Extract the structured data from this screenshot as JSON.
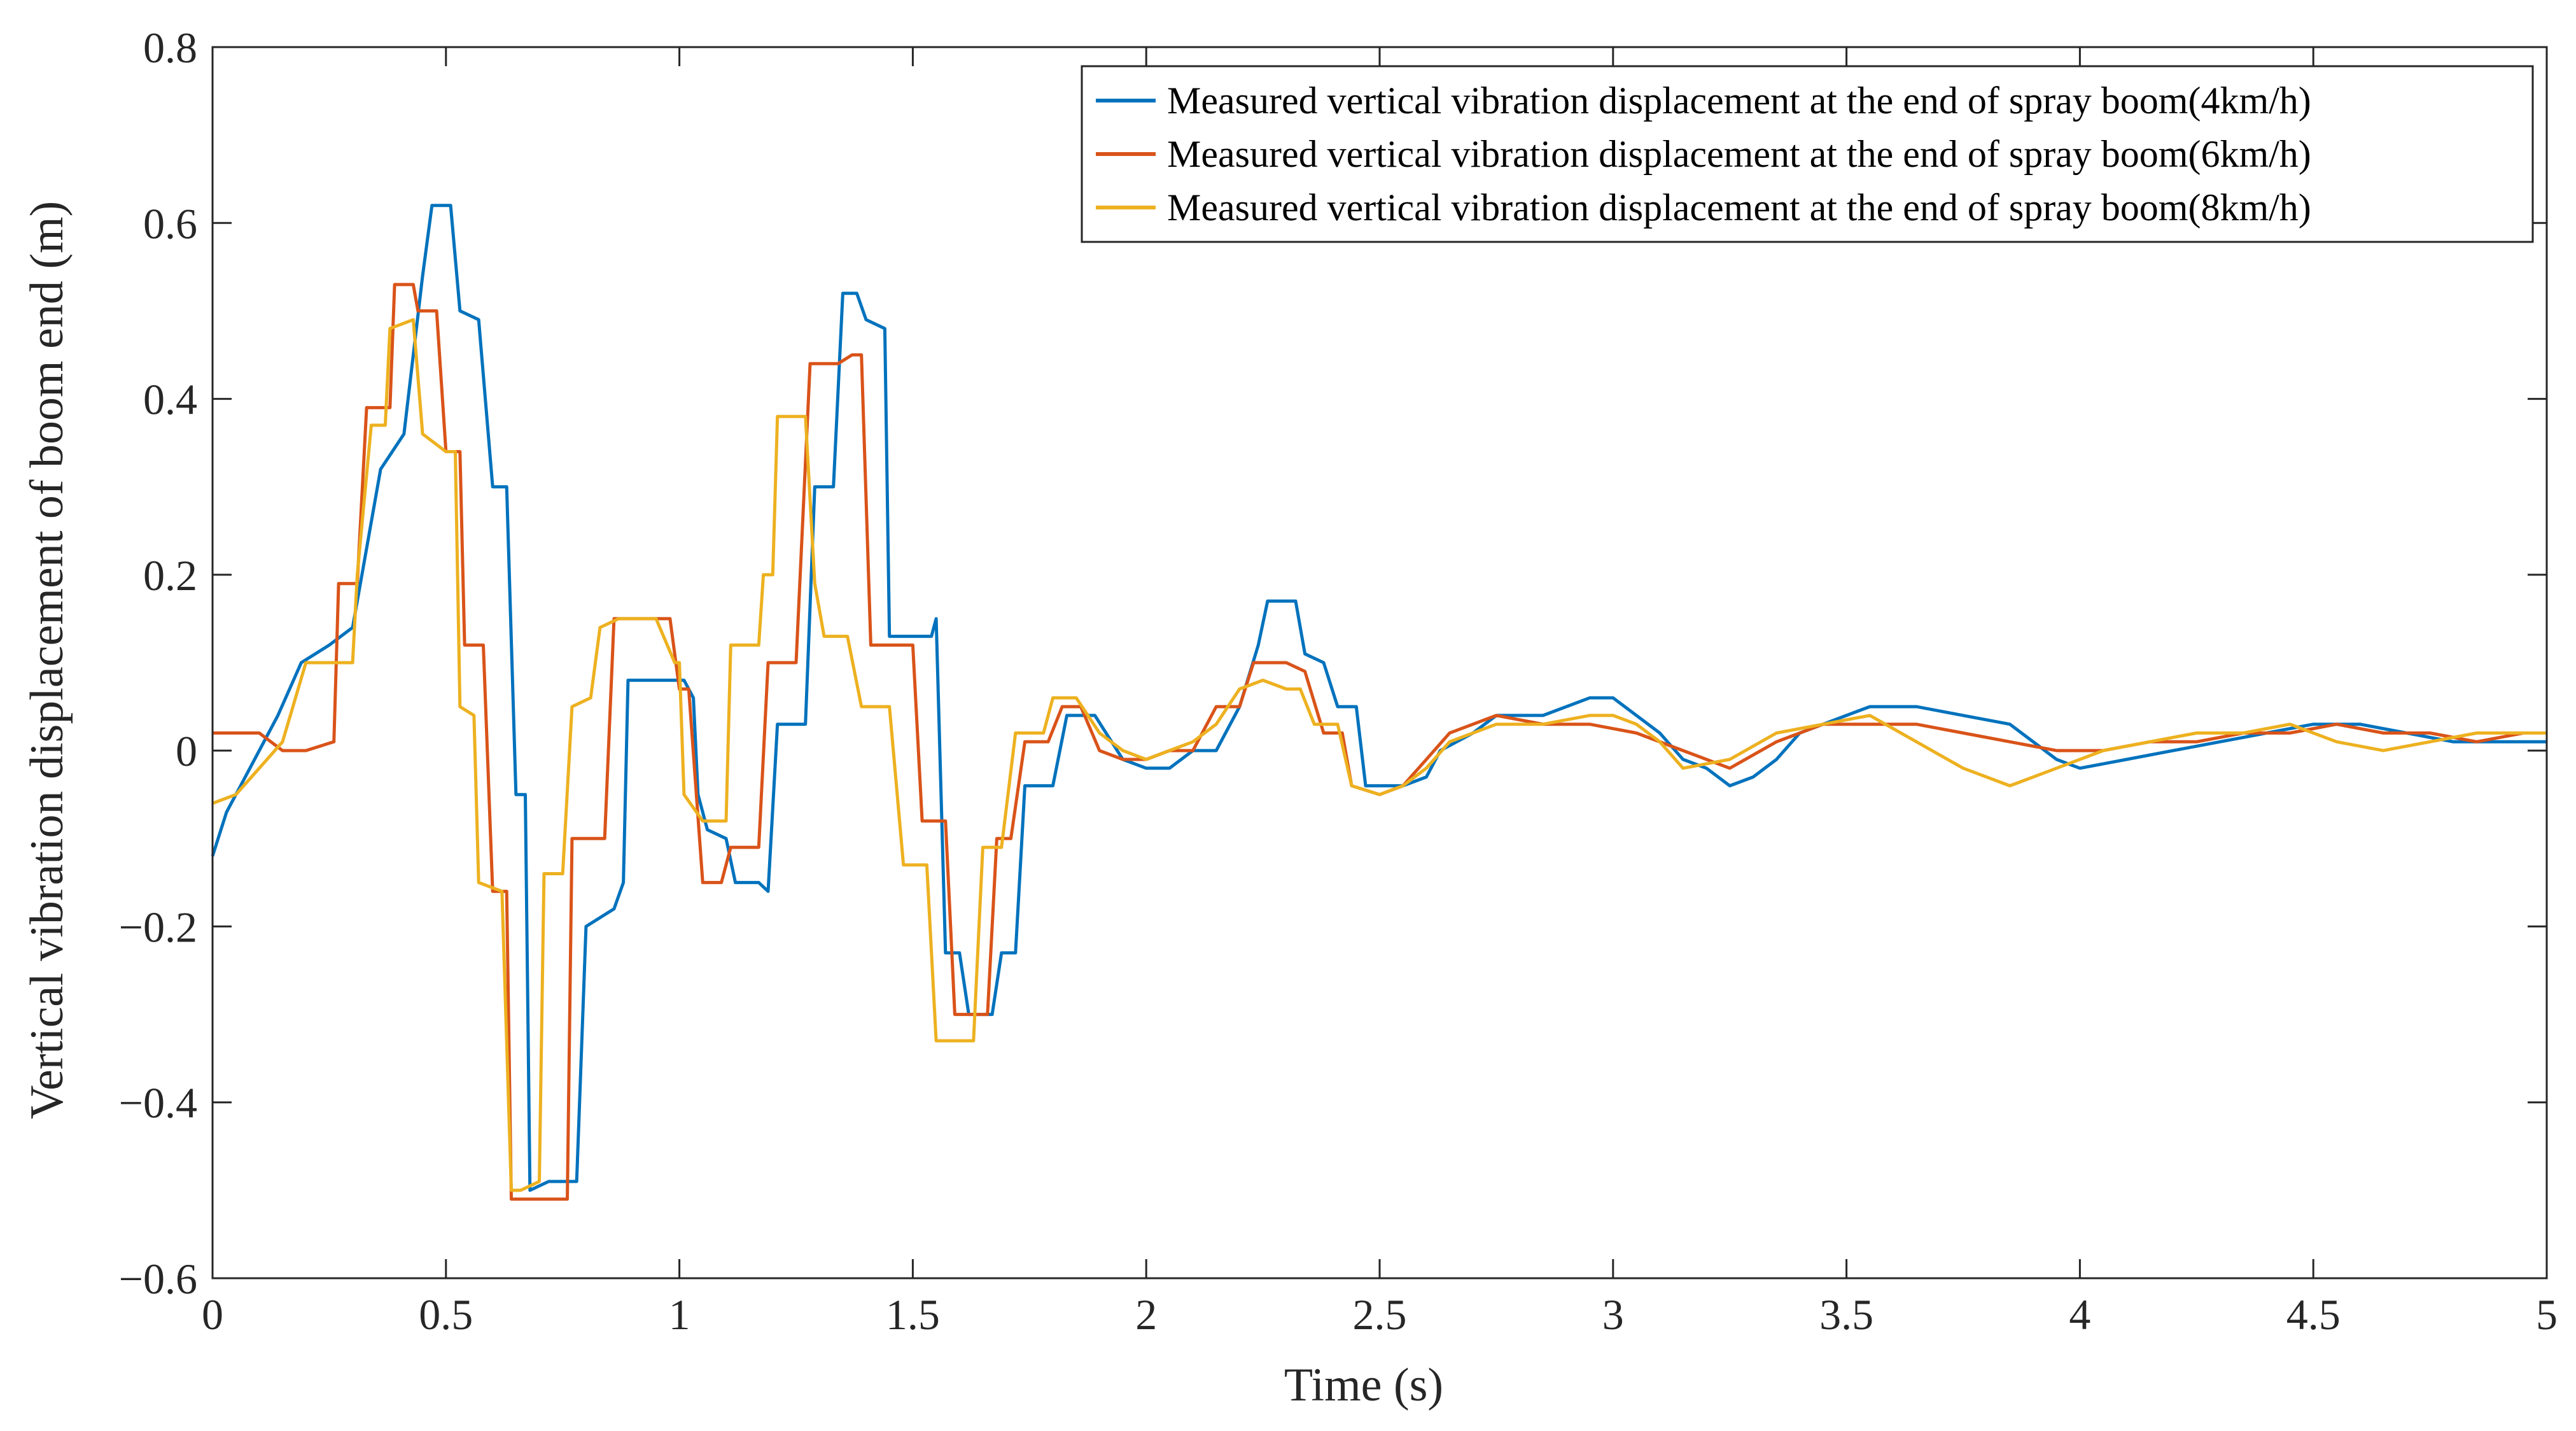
{
  "chart_data": {
    "type": "line",
    "title": "",
    "xlabel": "Time  (s)",
    "ylabel": "Vertical vibration displacement of boom end  (m)",
    "xlim": [
      0,
      5
    ],
    "ylim": [
      -0.6,
      0.8
    ],
    "xticks": [
      0,
      0.5,
      1,
      1.5,
      2,
      2.5,
      3,
      3.5,
      4,
      4.5,
      5
    ],
    "xtick_labels": [
      "0",
      "0.5",
      "1",
      "1.5",
      "2",
      "2.5",
      "3",
      "3.5",
      "4",
      "4.5",
      "5"
    ],
    "yticks": [
      -0.6,
      -0.4,
      -0.2,
      0,
      0.2,
      0.4,
      0.6,
      0.8
    ],
    "ytick_labels": [
      "−0.6",
      "−0.4",
      "−0.2",
      "0",
      "0.2",
      "0.4",
      "0.6",
      "0.8"
    ],
    "grid": false,
    "legend_position": "top-right",
    "series": [
      {
        "name": "Measured vertical vibration displacement at the end of spray boom(4km/h)",
        "color": "#0072BD",
        "points": [
          [
            0,
            -0.12
          ],
          [
            0.03,
            -0.07
          ],
          [
            0.08,
            -0.02
          ],
          [
            0.14,
            0.04
          ],
          [
            0.19,
            0.1
          ],
          [
            0.25,
            0.12
          ],
          [
            0.3,
            0.14
          ],
          [
            0.36,
            0.32
          ],
          [
            0.41,
            0.36
          ],
          [
            0.45,
            0.54
          ],
          [
            0.47,
            0.62
          ],
          [
            0.51,
            0.62
          ],
          [
            0.53,
            0.5
          ],
          [
            0.57,
            0.49
          ],
          [
            0.6,
            0.3
          ],
          [
            0.63,
            0.3
          ],
          [
            0.65,
            -0.05
          ],
          [
            0.67,
            -0.05
          ],
          [
            0.68,
            -0.5
          ],
          [
            0.72,
            -0.49
          ],
          [
            0.78,
            -0.49
          ],
          [
            0.8,
            -0.2
          ],
          [
            0.86,
            -0.18
          ],
          [
            0.88,
            -0.15
          ],
          [
            0.89,
            0.08
          ],
          [
            0.93,
            0.08
          ],
          [
            0.97,
            0.08
          ],
          [
            1.01,
            0.08
          ],
          [
            1.03,
            0.06
          ],
          [
            1.04,
            -0.05
          ],
          [
            1.06,
            -0.09
          ],
          [
            1.1,
            -0.1
          ],
          [
            1.12,
            -0.15
          ],
          [
            1.17,
            -0.15
          ],
          [
            1.19,
            -0.16
          ],
          [
            1.21,
            0.03
          ],
          [
            1.27,
            0.03
          ],
          [
            1.29,
            0.3
          ],
          [
            1.33,
            0.3
          ],
          [
            1.35,
            0.52
          ],
          [
            1.38,
            0.52
          ],
          [
            1.4,
            0.49
          ],
          [
            1.44,
            0.48
          ],
          [
            1.45,
            0.13
          ],
          [
            1.5,
            0.13
          ],
          [
            1.54,
            0.13
          ],
          [
            1.55,
            0.15
          ],
          [
            1.57,
            -0.23
          ],
          [
            1.6,
            -0.23
          ],
          [
            1.62,
            -0.3
          ],
          [
            1.67,
            -0.3
          ],
          [
            1.69,
            -0.23
          ],
          [
            1.72,
            -0.23
          ],
          [
            1.74,
            -0.04
          ],
          [
            1.8,
            -0.04
          ],
          [
            1.83,
            0.04
          ],
          [
            1.89,
            0.04
          ],
          [
            1.95,
            -0.01
          ],
          [
            2.0,
            -0.02
          ],
          [
            2.05,
            -0.02
          ],
          [
            2.1,
            0.0
          ],
          [
            2.15,
            0.0
          ],
          [
            2.2,
            0.05
          ],
          [
            2.24,
            0.12
          ],
          [
            2.26,
            0.17
          ],
          [
            2.32,
            0.17
          ],
          [
            2.34,
            0.11
          ],
          [
            2.38,
            0.1
          ],
          [
            2.41,
            0.05
          ],
          [
            2.45,
            0.05
          ],
          [
            2.47,
            -0.04
          ],
          [
            2.55,
            -0.04
          ],
          [
            2.6,
            -0.03
          ],
          [
            2.63,
            0.0
          ],
          [
            2.7,
            0.02
          ],
          [
            2.75,
            0.04
          ],
          [
            2.85,
            0.04
          ],
          [
            2.95,
            0.06
          ],
          [
            3.0,
            0.06
          ],
          [
            3.05,
            0.04
          ],
          [
            3.1,
            0.02
          ],
          [
            3.15,
            -0.01
          ],
          [
            3.2,
            -0.02
          ],
          [
            3.25,
            -0.04
          ],
          [
            3.3,
            -0.03
          ],
          [
            3.35,
            -0.01
          ],
          [
            3.4,
            0.02
          ],
          [
            3.45,
            0.03
          ],
          [
            3.5,
            0.04
          ],
          [
            3.55,
            0.05
          ],
          [
            3.65,
            0.05
          ],
          [
            3.75,
            0.04
          ],
          [
            3.85,
            0.03
          ],
          [
            3.9,
            0.01
          ],
          [
            3.95,
            -0.01
          ],
          [
            4.0,
            -0.02
          ],
          [
            4.1,
            -0.01
          ],
          [
            4.2,
            0.0
          ],
          [
            4.3,
            0.01
          ],
          [
            4.4,
            0.02
          ],
          [
            4.5,
            0.03
          ],
          [
            4.6,
            0.03
          ],
          [
            4.7,
            0.02
          ],
          [
            4.8,
            0.01
          ],
          [
            4.9,
            0.01
          ],
          [
            5.0,
            0.01
          ]
        ]
      },
      {
        "name": "Measured vertical vibration displacement at the end of spray boom(6km/h)",
        "color": "#D95319",
        "points": [
          [
            0,
            0.02
          ],
          [
            0.05,
            0.02
          ],
          [
            0.1,
            0.02
          ],
          [
            0.15,
            0.0
          ],
          [
            0.2,
            0.0
          ],
          [
            0.26,
            0.01
          ],
          [
            0.27,
            0.19
          ],
          [
            0.31,
            0.19
          ],
          [
            0.33,
            0.39
          ],
          [
            0.38,
            0.39
          ],
          [
            0.39,
            0.53
          ],
          [
            0.43,
            0.53
          ],
          [
            0.44,
            0.5
          ],
          [
            0.48,
            0.5
          ],
          [
            0.5,
            0.34
          ],
          [
            0.53,
            0.34
          ],
          [
            0.54,
            0.12
          ],
          [
            0.58,
            0.12
          ],
          [
            0.6,
            -0.16
          ],
          [
            0.63,
            -0.16
          ],
          [
            0.64,
            -0.51
          ],
          [
            0.68,
            -0.51
          ],
          [
            0.72,
            -0.51
          ],
          [
            0.76,
            -0.51
          ],
          [
            0.77,
            -0.1
          ],
          [
            0.84,
            -0.1
          ],
          [
            0.86,
            0.15
          ],
          [
            0.9,
            0.15
          ],
          [
            0.94,
            0.15
          ],
          [
            0.98,
            0.15
          ],
          [
            1.0,
            0.07
          ],
          [
            1.02,
            0.07
          ],
          [
            1.05,
            -0.15
          ],
          [
            1.09,
            -0.15
          ],
          [
            1.11,
            -0.11
          ],
          [
            1.17,
            -0.11
          ],
          [
            1.19,
            0.1
          ],
          [
            1.25,
            0.1
          ],
          [
            1.28,
            0.44
          ],
          [
            1.34,
            0.44
          ],
          [
            1.37,
            0.45
          ],
          [
            1.39,
            0.45
          ],
          [
            1.41,
            0.12
          ],
          [
            1.46,
            0.12
          ],
          [
            1.5,
            0.12
          ],
          [
            1.52,
            -0.08
          ],
          [
            1.57,
            -0.08
          ],
          [
            1.59,
            -0.3
          ],
          [
            1.63,
            -0.3
          ],
          [
            1.66,
            -0.3
          ],
          [
            1.68,
            -0.1
          ],
          [
            1.71,
            -0.1
          ],
          [
            1.74,
            0.01
          ],
          [
            1.79,
            0.01
          ],
          [
            1.82,
            0.05
          ],
          [
            1.86,
            0.05
          ],
          [
            1.9,
            0.0
          ],
          [
            1.95,
            -0.01
          ],
          [
            2.0,
            -0.01
          ],
          [
            2.05,
            0.0
          ],
          [
            2.1,
            0.0
          ],
          [
            2.15,
            0.05
          ],
          [
            2.2,
            0.05
          ],
          [
            2.23,
            0.1
          ],
          [
            2.3,
            0.1
          ],
          [
            2.34,
            0.09
          ],
          [
            2.38,
            0.02
          ],
          [
            2.42,
            0.02
          ],
          [
            2.44,
            -0.04
          ],
          [
            2.5,
            -0.05
          ],
          [
            2.55,
            -0.04
          ],
          [
            2.6,
            -0.01
          ],
          [
            2.65,
            0.02
          ],
          [
            2.75,
            0.04
          ],
          [
            2.85,
            0.03
          ],
          [
            2.95,
            0.03
          ],
          [
            3.05,
            0.02
          ],
          [
            3.15,
            0.0
          ],
          [
            3.25,
            -0.02
          ],
          [
            3.35,
            0.01
          ],
          [
            3.45,
            0.03
          ],
          [
            3.55,
            0.03
          ],
          [
            3.65,
            0.03
          ],
          [
            3.75,
            0.02
          ],
          [
            3.85,
            0.01
          ],
          [
            3.95,
            0.0
          ],
          [
            4.05,
            0.0
          ],
          [
            4.15,
            0.01
          ],
          [
            4.25,
            0.01
          ],
          [
            4.35,
            0.02
          ],
          [
            4.45,
            0.02
          ],
          [
            4.55,
            0.03
          ],
          [
            4.65,
            0.02
          ],
          [
            4.75,
            0.02
          ],
          [
            4.85,
            0.01
          ],
          [
            4.95,
            0.02
          ],
          [
            5.0,
            0.02
          ]
        ]
      },
      {
        "name": "Measured vertical vibration displacement at the end of spray boom(8km/h)",
        "color": "#EDB120",
        "points": [
          [
            0,
            -0.06
          ],
          [
            0.05,
            -0.05
          ],
          [
            0.1,
            -0.02
          ],
          [
            0.15,
            0.01
          ],
          [
            0.2,
            0.1
          ],
          [
            0.25,
            0.1
          ],
          [
            0.3,
            0.1
          ],
          [
            0.31,
            0.2
          ],
          [
            0.34,
            0.37
          ],
          [
            0.37,
            0.37
          ],
          [
            0.38,
            0.48
          ],
          [
            0.43,
            0.49
          ],
          [
            0.45,
            0.36
          ],
          [
            0.5,
            0.34
          ],
          [
            0.52,
            0.34
          ],
          [
            0.53,
            0.05
          ],
          [
            0.56,
            0.04
          ],
          [
            0.57,
            -0.15
          ],
          [
            0.62,
            -0.16
          ],
          [
            0.64,
            -0.5
          ],
          [
            0.66,
            -0.5
          ],
          [
            0.7,
            -0.49
          ],
          [
            0.71,
            -0.14
          ],
          [
            0.75,
            -0.14
          ],
          [
            0.77,
            0.05
          ],
          [
            0.81,
            0.06
          ],
          [
            0.83,
            0.14
          ],
          [
            0.87,
            0.15
          ],
          [
            0.95,
            0.15
          ],
          [
            0.99,
            0.1
          ],
          [
            1.0,
            0.1
          ],
          [
            1.01,
            -0.05
          ],
          [
            1.05,
            -0.08
          ],
          [
            1.1,
            -0.08
          ],
          [
            1.11,
            0.12
          ],
          [
            1.17,
            0.12
          ],
          [
            1.18,
            0.2
          ],
          [
            1.2,
            0.2
          ],
          [
            1.21,
            0.38
          ],
          [
            1.27,
            0.38
          ],
          [
            1.29,
            0.19
          ],
          [
            1.31,
            0.13
          ],
          [
            1.36,
            0.13
          ],
          [
            1.39,
            0.05
          ],
          [
            1.45,
            0.05
          ],
          [
            1.48,
            -0.13
          ],
          [
            1.53,
            -0.13
          ],
          [
            1.55,
            -0.33
          ],
          [
            1.59,
            -0.33
          ],
          [
            1.63,
            -0.33
          ],
          [
            1.65,
            -0.11
          ],
          [
            1.69,
            -0.11
          ],
          [
            1.72,
            0.02
          ],
          [
            1.78,
            0.02
          ],
          [
            1.8,
            0.06
          ],
          [
            1.85,
            0.06
          ],
          [
            1.9,
            0.02
          ],
          [
            1.95,
            0.0
          ],
          [
            2.0,
            -0.01
          ],
          [
            2.05,
            0.0
          ],
          [
            2.1,
            0.01
          ],
          [
            2.15,
            0.03
          ],
          [
            2.2,
            0.07
          ],
          [
            2.25,
            0.08
          ],
          [
            2.3,
            0.07
          ],
          [
            2.33,
            0.07
          ],
          [
            2.36,
            0.03
          ],
          [
            2.41,
            0.03
          ],
          [
            2.44,
            -0.04
          ],
          [
            2.5,
            -0.05
          ],
          [
            2.55,
            -0.04
          ],
          [
            2.6,
            -0.02
          ],
          [
            2.65,
            0.01
          ],
          [
            2.75,
            0.03
          ],
          [
            2.85,
            0.03
          ],
          [
            2.95,
            0.04
          ],
          [
            3.0,
            0.04
          ],
          [
            3.05,
            0.03
          ],
          [
            3.1,
            0.01
          ],
          [
            3.15,
            -0.02
          ],
          [
            3.25,
            -0.01
          ],
          [
            3.35,
            0.02
          ],
          [
            3.45,
            0.03
          ],
          [
            3.55,
            0.04
          ],
          [
            3.65,
            0.01
          ],
          [
            3.75,
            -0.02
          ],
          [
            3.85,
            -0.04
          ],
          [
            3.95,
            -0.02
          ],
          [
            4.05,
            0.0
          ],
          [
            4.15,
            0.01
          ],
          [
            4.25,
            0.02
          ],
          [
            4.35,
            0.02
          ],
          [
            4.45,
            0.03
          ],
          [
            4.55,
            0.01
          ],
          [
            4.65,
            0.0
          ],
          [
            4.75,
            0.01
          ],
          [
            4.85,
            0.02
          ],
          [
            4.95,
            0.02
          ],
          [
            5.0,
            0.02
          ]
        ]
      }
    ]
  }
}
